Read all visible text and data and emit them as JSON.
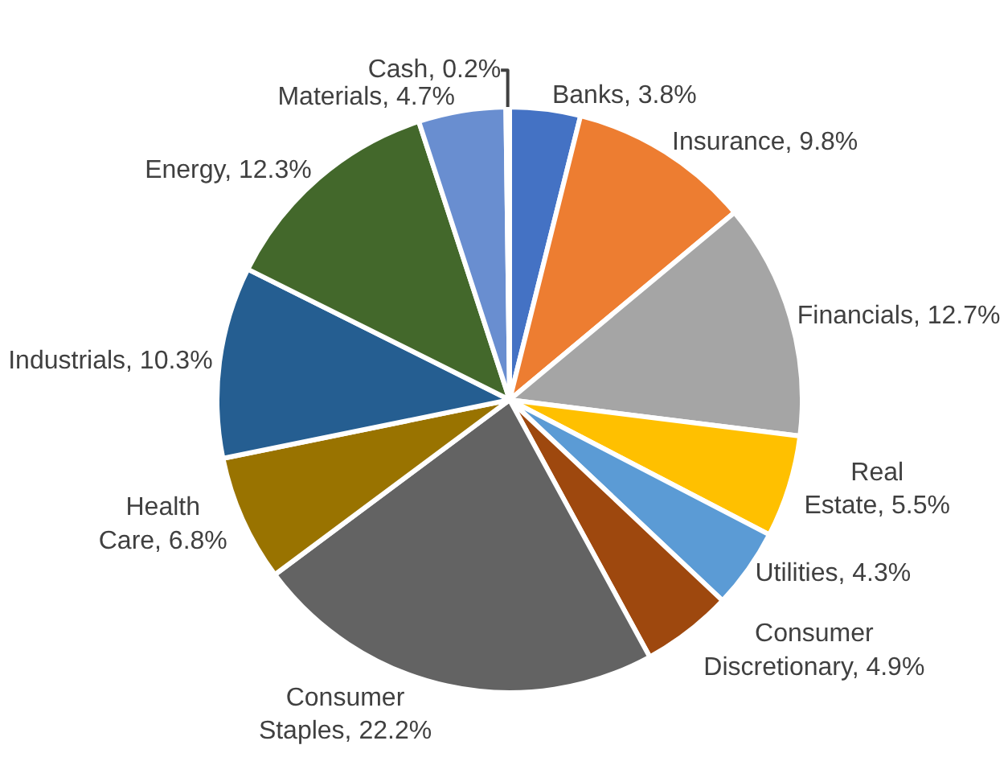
{
  "chart_data": {
    "type": "pie",
    "categories": [
      "Banks",
      "Insurance",
      "Financials",
      "Real Estate",
      "Utilities",
      "Consumer Discretionary",
      "Consumer Staples",
      "Health Care",
      "Industrials",
      "Energy",
      "Materials",
      "Cash"
    ],
    "values": [
      3.8,
      9.8,
      12.7,
      5.5,
      4.3,
      4.9,
      22.2,
      6.8,
      10.3,
      12.3,
      4.7,
      0.2
    ],
    "value_labels": [
      "3.8%",
      "9.8%",
      "12.7%",
      "5.5%",
      "4.3%",
      "4.9%",
      "22.2%",
      "6.8%",
      "10.3%",
      "12.3%",
      "4.7%",
      "0.2%"
    ],
    "colors": [
      "#4472c4",
      "#ed7d31",
      "#a5a5a5",
      "#ffc000",
      "#5b9bd5",
      "#9e480e",
      "#636363",
      "#997300",
      "#255e91",
      "#43682b",
      "#698ed0",
      "#f1975a"
    ],
    "legend": false
  }
}
